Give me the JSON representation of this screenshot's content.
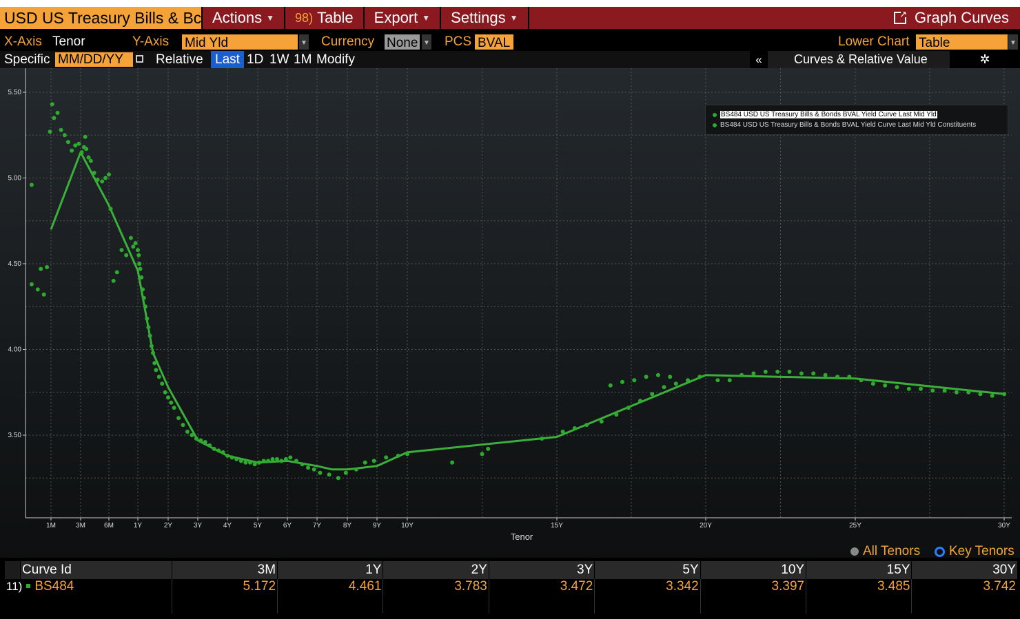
{
  "menu": {
    "title": "USD US Treasury Bills & Bc",
    "actions": "Actions",
    "table_num": "98)",
    "table": "Table",
    "export": "Export",
    "settings": "Settings",
    "graph_curves": "Graph Curves"
  },
  "controls": {
    "xaxis_label": "X-Axis",
    "xaxis_value": "Tenor",
    "yaxis_label": "Y-Axis",
    "yaxis_value": "Mid Yld",
    "currency_label": "Currency",
    "currency_value": "None",
    "pcs_label": "PCS",
    "pcs_value": "BVAL",
    "lower_chart_label": "Lower Chart",
    "lower_chart_value": "Table"
  },
  "row3": {
    "specific": "Specific",
    "date_placeholder": "MM/DD/YY",
    "relative": "Relative",
    "last": "Last",
    "d1": "1D",
    "w1": "1W",
    "m1": "1M",
    "modify": "Modify",
    "collapse": "«",
    "panel_title": "Curves & Relative Value"
  },
  "legend": {
    "curve": "BS484 USD US Treasury Bills & Bonds BVAL Yield Curve Last Mid Yld",
    "constituents": "BS484 USD US Treasury Bills & Bonds BVAL Yield Curve Last Mid Yld Constituents"
  },
  "toggle": {
    "all": "All Tenors",
    "key": "Key Tenors"
  },
  "table": {
    "headers": [
      "Curve Id",
      "3M",
      "1Y",
      "2Y",
      "3Y",
      "5Y",
      "10Y",
      "15Y",
      "30Y"
    ],
    "rows": [
      {
        "num": "11)",
        "id": "BS484",
        "values": [
          "5.172",
          "4.461",
          "3.783",
          "3.472",
          "3.342",
          "3.397",
          "3.485",
          "3.742"
        ]
      }
    ]
  },
  "colors": {
    "accent": "#f5a338",
    "menubar": "#8a1a20",
    "series": "#2eaa2e"
  },
  "chart_data": {
    "type": "scatter",
    "xlabel": "Tenor",
    "ylabel": "",
    "ylim": [
      3.0,
      5.5
    ],
    "yticks": [
      3.5,
      4.0,
      4.5,
      5.0,
      5.5
    ],
    "ytick_labels": [
      "3.50",
      "4.00",
      "4.50",
      "5.00",
      "5.50"
    ],
    "xticks": [
      {
        "label": "1M",
        "t": 0.0833
      },
      {
        "label": "3M",
        "t": 0.25
      },
      {
        "label": "6M",
        "t": 0.5
      },
      {
        "label": "1Y",
        "t": 1
      },
      {
        "label": "2Y",
        "t": 2
      },
      {
        "label": "3Y",
        "t": 3
      },
      {
        "label": "4Y",
        "t": 4
      },
      {
        "label": "5Y",
        "t": 5
      },
      {
        "label": "6Y",
        "t": 6
      },
      {
        "label": "7Y",
        "t": 7
      },
      {
        "label": "8Y",
        "t": 8
      },
      {
        "label": "9Y",
        "t": 9
      },
      {
        "label": "10Y",
        "t": 10
      },
      {
        "label": "15Y",
        "t": 15
      },
      {
        "label": "20Y",
        "t": 20
      },
      {
        "label": "25Y",
        "t": 25
      },
      {
        "label": "30Y",
        "t": 30
      }
    ],
    "grid": true,
    "legend_position": "top-right",
    "series": [
      {
        "name": "BS484 USD US Treasury Bills & Bonds BVAL Yield Curve Last Mid Yld",
        "kind": "line",
        "points": [
          [
            0.0833,
            4.7
          ],
          [
            0.25,
            5.15
          ],
          [
            0.5,
            4.84
          ],
          [
            1,
            4.46
          ],
          [
            1.5,
            3.98
          ],
          [
            2,
            3.78
          ],
          [
            3,
            3.47
          ],
          [
            4,
            3.38
          ],
          [
            5,
            3.34
          ],
          [
            6,
            3.35
          ],
          [
            7,
            3.32
          ],
          [
            7.5,
            3.3
          ],
          [
            8,
            3.3
          ],
          [
            9,
            3.32
          ],
          [
            10,
            3.4
          ],
          [
            15,
            3.49
          ],
          [
            20,
            3.85
          ],
          [
            25,
            3.83
          ],
          [
            30,
            3.74
          ]
        ]
      },
      {
        "name": "BS484 USD US Treasury Bills & Bonds BVAL Yield Curve Last Mid Yld Constituents",
        "kind": "scatter",
        "points": [
          [
            0.02,
            4.38
          ],
          [
            0.04,
            4.35
          ],
          [
            0.06,
            4.32
          ],
          [
            0.02,
            4.96
          ],
          [
            0.05,
            4.47
          ],
          [
            0.07,
            4.48
          ],
          [
            0.08,
            5.27
          ],
          [
            0.09,
            5.43
          ],
          [
            0.1,
            5.35
          ],
          [
            0.12,
            5.38
          ],
          [
            0.14,
            5.28
          ],
          [
            0.16,
            5.25
          ],
          [
            0.18,
            5.21
          ],
          [
            0.2,
            5.16
          ],
          [
            0.22,
            5.19
          ],
          [
            0.24,
            5.2
          ],
          [
            0.26,
            5.15
          ],
          [
            0.28,
            5.18
          ],
          [
            0.29,
            5.24
          ],
          [
            0.3,
            5.17
          ],
          [
            0.32,
            5.12
          ],
          [
            0.34,
            5.1
          ],
          [
            0.37,
            5.03
          ],
          [
            0.4,
            4.99
          ],
          [
            0.44,
            4.98
          ],
          [
            0.47,
            5.0
          ],
          [
            0.5,
            5.02
          ],
          [
            0.53,
            4.82
          ],
          [
            0.58,
            4.4
          ],
          [
            0.64,
            4.45
          ],
          [
            0.72,
            4.58
          ],
          [
            0.8,
            4.55
          ],
          [
            0.88,
            4.65
          ],
          [
            0.92,
            4.6
          ],
          [
            0.96,
            4.62
          ],
          [
            1.0,
            4.58
          ],
          [
            1.03,
            4.55
          ],
          [
            1.05,
            4.5
          ],
          [
            1.08,
            4.47
          ],
          [
            1.12,
            4.42
          ],
          [
            1.16,
            4.35
          ],
          [
            1.2,
            4.3
          ],
          [
            1.25,
            4.25
          ],
          [
            1.3,
            4.18
          ],
          [
            1.35,
            4.13
          ],
          [
            1.4,
            4.08
          ],
          [
            1.45,
            4.02
          ],
          [
            1.5,
            3.98
          ],
          [
            1.55,
            3.92
          ],
          [
            1.6,
            3.88
          ],
          [
            1.7,
            3.84
          ],
          [
            1.8,
            3.8
          ],
          [
            1.9,
            3.75
          ],
          [
            2.0,
            3.72
          ],
          [
            2.1,
            3.69
          ],
          [
            2.2,
            3.66
          ],
          [
            2.35,
            3.6
          ],
          [
            2.5,
            3.56
          ],
          [
            2.65,
            3.52
          ],
          [
            2.8,
            3.5
          ],
          [
            2.95,
            3.48
          ],
          [
            3.1,
            3.47
          ],
          [
            3.25,
            3.46
          ],
          [
            3.4,
            3.44
          ],
          [
            3.55,
            3.42
          ],
          [
            3.7,
            3.41
          ],
          [
            3.85,
            3.4
          ],
          [
            4.0,
            3.38
          ],
          [
            4.15,
            3.37
          ],
          [
            4.3,
            3.36
          ],
          [
            4.45,
            3.35
          ],
          [
            4.6,
            3.34
          ],
          [
            4.75,
            3.34
          ],
          [
            4.9,
            3.33
          ],
          [
            5.05,
            3.34
          ],
          [
            5.2,
            3.35
          ],
          [
            5.35,
            3.35
          ],
          [
            5.5,
            3.36
          ],
          [
            5.65,
            3.36
          ],
          [
            5.8,
            3.35
          ],
          [
            5.95,
            3.36
          ],
          [
            6.1,
            3.37
          ],
          [
            6.3,
            3.35
          ],
          [
            6.5,
            3.33
          ],
          [
            6.7,
            3.31
          ],
          [
            6.9,
            3.3
          ],
          [
            7.1,
            3.28
          ],
          [
            7.4,
            3.27
          ],
          [
            7.7,
            3.25
          ],
          [
            7.95,
            3.28
          ],
          [
            8.3,
            3.3
          ],
          [
            8.6,
            3.34
          ],
          [
            8.9,
            3.35
          ],
          [
            9.3,
            3.37
          ],
          [
            9.7,
            3.38
          ],
          [
            10.0,
            3.39
          ],
          [
            11.5,
            3.34
          ],
          [
            12.5,
            3.39
          ],
          [
            12.7,
            3.42
          ],
          [
            14.5,
            3.48
          ],
          [
            15.2,
            3.52
          ],
          [
            15.6,
            3.54
          ],
          [
            16.0,
            3.56
          ],
          [
            16.5,
            3.58
          ],
          [
            17.0,
            3.62
          ],
          [
            17.4,
            3.66
          ],
          [
            17.8,
            3.7
          ],
          [
            18.2,
            3.74
          ],
          [
            18.6,
            3.78
          ],
          [
            19.0,
            3.8
          ],
          [
            19.4,
            3.82
          ],
          [
            19.8,
            3.84
          ],
          [
            16.8,
            3.79
          ],
          [
            17.2,
            3.81
          ],
          [
            17.6,
            3.82
          ],
          [
            18.0,
            3.84
          ],
          [
            18.4,
            3.85
          ],
          [
            18.8,
            3.84
          ],
          [
            20.4,
            3.82
          ],
          [
            20.8,
            3.82
          ],
          [
            21.2,
            3.85
          ],
          [
            21.6,
            3.86
          ],
          [
            22.0,
            3.87
          ],
          [
            22.4,
            3.87
          ],
          [
            22.8,
            3.87
          ],
          [
            23.2,
            3.86
          ],
          [
            23.6,
            3.86
          ],
          [
            24.0,
            3.85
          ],
          [
            24.4,
            3.84
          ],
          [
            24.8,
            3.84
          ],
          [
            25.2,
            3.82
          ],
          [
            25.6,
            3.8
          ],
          [
            26.0,
            3.79
          ],
          [
            26.4,
            3.78
          ],
          [
            26.8,
            3.77
          ],
          [
            27.2,
            3.77
          ],
          [
            27.6,
            3.76
          ],
          [
            28.0,
            3.76
          ],
          [
            28.4,
            3.75
          ],
          [
            28.8,
            3.75
          ],
          [
            29.2,
            3.74
          ],
          [
            29.6,
            3.73
          ],
          [
            30.0,
            3.74
          ]
        ]
      }
    ]
  }
}
